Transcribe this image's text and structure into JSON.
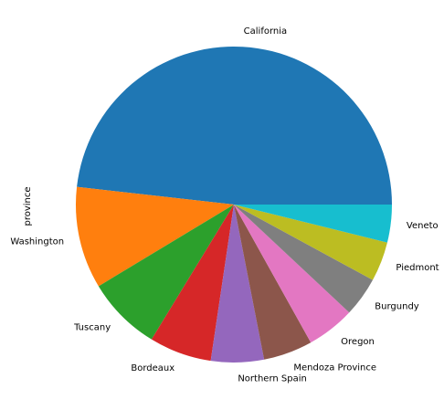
{
  "chart_data": {
    "type": "pie",
    "ylabel": "province",
    "categories": [
      "California",
      "Washington",
      "Tuscany",
      "Bordeaux",
      "Northern Spain",
      "Mendoza Province",
      "Oregon",
      "Burgundy",
      "Piedmont",
      "Veneto"
    ],
    "values": [
      49.9,
      10.8,
      7.9,
      6.6,
      5.6,
      5.2,
      5.1,
      4.2,
      4.2,
      4.0
    ],
    "colors": [
      "#1f77b4",
      "#ff7f0e",
      "#2ca02c",
      "#d62728",
      "#9467bd",
      "#8c564b",
      "#e377c2",
      "#7f7f7f",
      "#bcbd22",
      "#17becf"
    ],
    "legend": false,
    "grid": false
  }
}
